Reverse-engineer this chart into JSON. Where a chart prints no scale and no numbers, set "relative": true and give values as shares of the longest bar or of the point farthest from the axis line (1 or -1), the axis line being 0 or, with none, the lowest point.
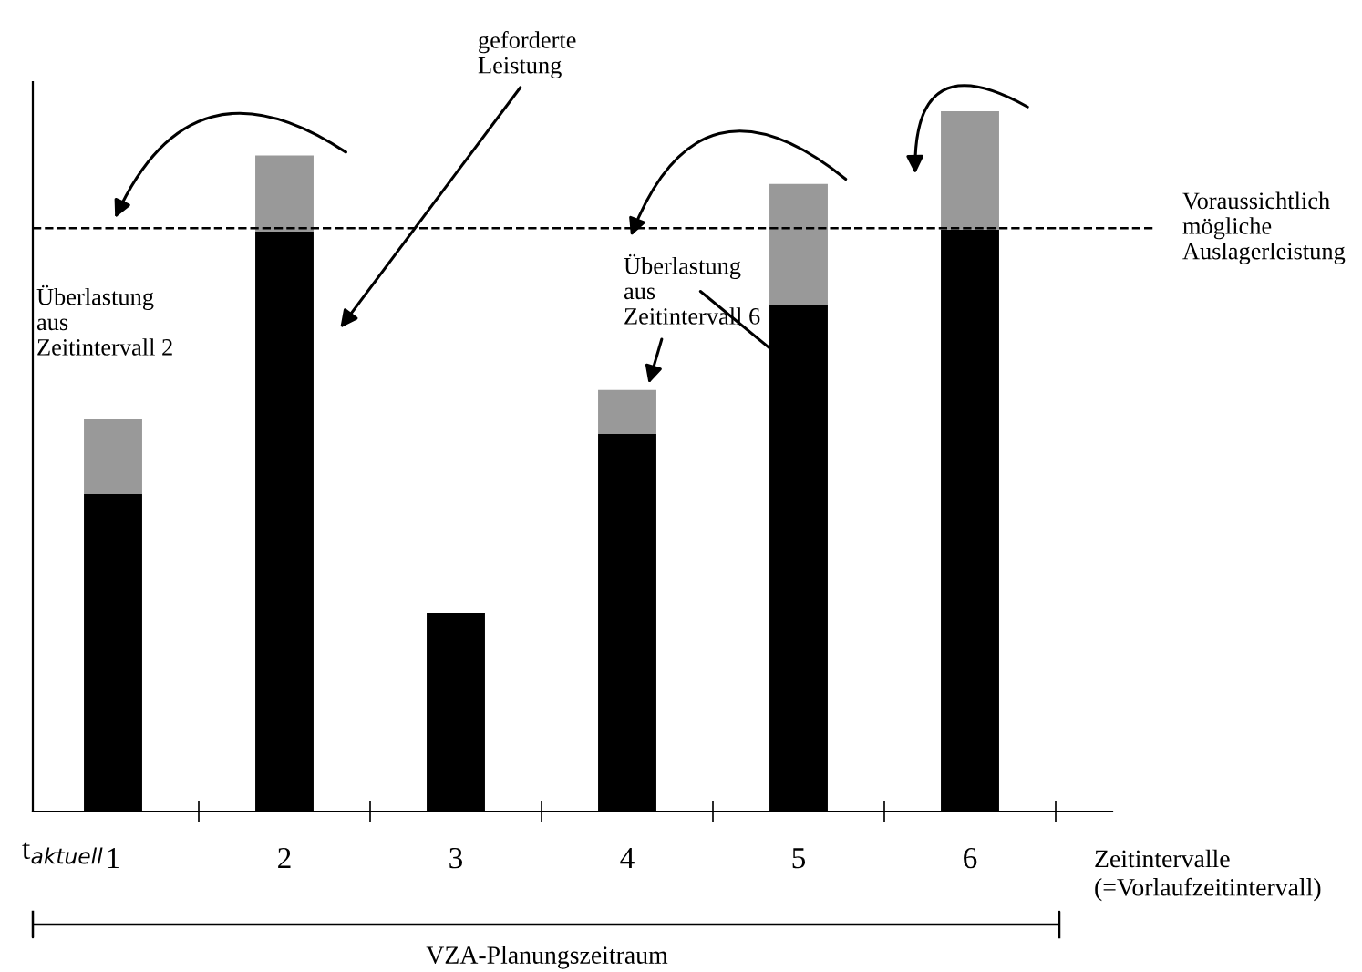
{
  "chart_data": {
    "type": "bar",
    "stacked": true,
    "relative": true,
    "categories": [
      "1",
      "2",
      "3",
      "4",
      "5",
      "6"
    ],
    "series": [
      {
        "color": "#000000",
        "values": [
          0.453,
          0.828,
          0.284,
          0.539,
          0.724,
          0.831
        ]
      },
      {
        "color": "#999999",
        "values": [
          0.107,
          0.109,
          null,
          0.063,
          0.172,
          0.169
        ]
      }
    ],
    "xlabel": "Zeitintervalle\n(=Vorlaufzeitintervall)",
    "ref_lines": [
      {
        "axis": "y",
        "value": 0.833,
        "label": "Voraussichtlich\nmögliche\nAuslagerleistung",
        "color": "#000000",
        "line_style": "dashed"
      }
    ],
    "annotations": [
      "geforderte\nLeistung",
      "Überlastung\naus\nZeitintervall 2",
      "Überlastung\naus\nZeitintervall 6",
      "t$_{aktuell}$",
      "VZA-Planungszeitraum"
    ],
    "grid": false,
    "legend": false
  }
}
